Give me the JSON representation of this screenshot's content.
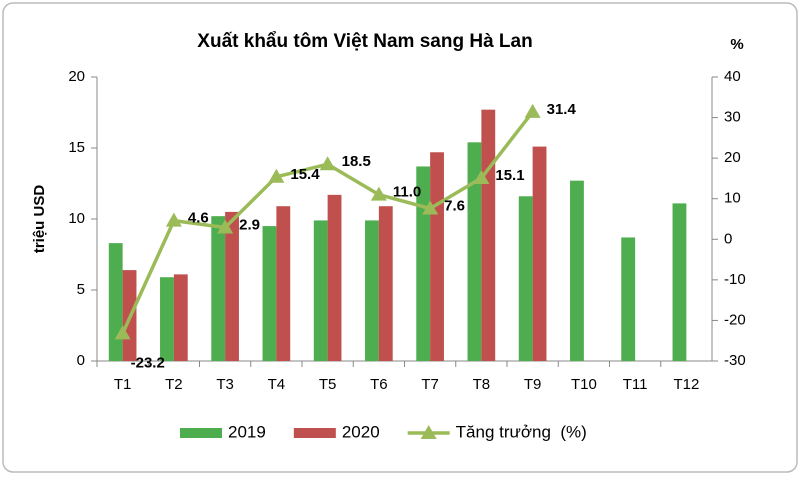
{
  "chart_data": {
    "type": "bar",
    "title": "Xuất khẩu tôm Việt Nam sang Hà Lan",
    "y_label": "triệu USD",
    "y2_label": "%",
    "categories": [
      "T1",
      "T2",
      "T3",
      "T4",
      "T5",
      "T6",
      "T7",
      "T8",
      "T9",
      "T10",
      "T11",
      "T12"
    ],
    "series": [
      {
        "name": "2019",
        "type": "bar",
        "color": "#4ead4e",
        "values": [
          8.3,
          5.9,
          10.2,
          9.5,
          9.9,
          9.9,
          13.7,
          15.4,
          11.6,
          12.7,
          8.7,
          11.1
        ]
      },
      {
        "name": "2020",
        "type": "bar",
        "color": "#c0504d",
        "values": [
          6.4,
          6.1,
          10.5,
          10.9,
          11.7,
          10.9,
          14.7,
          17.7,
          15.1,
          null,
          null,
          null
        ]
      },
      {
        "name": "Tăng trưởng  (%)",
        "type": "line",
        "axis": "y2",
        "color": "#9bbb59",
        "values": [
          -23.2,
          4.6,
          2.9,
          15.4,
          18.5,
          11.0,
          7.6,
          15.1,
          31.4,
          null,
          null,
          null
        ],
        "value_labels": [
          "-23.2",
          "4.6",
          "2.9",
          "15.4",
          "18.5",
          "11.0",
          "7.6",
          "15.1",
          "31.4",
          null,
          null,
          null
        ]
      }
    ],
    "ylim": [
      0,
      20
    ],
    "yticks": [
      0,
      5,
      10,
      15,
      20
    ],
    "y2lim": [
      -30,
      40
    ],
    "y2ticks": [
      -30,
      -20,
      -10,
      0,
      10,
      20,
      30,
      40
    ],
    "grid": false,
    "legend": "bottom"
  }
}
